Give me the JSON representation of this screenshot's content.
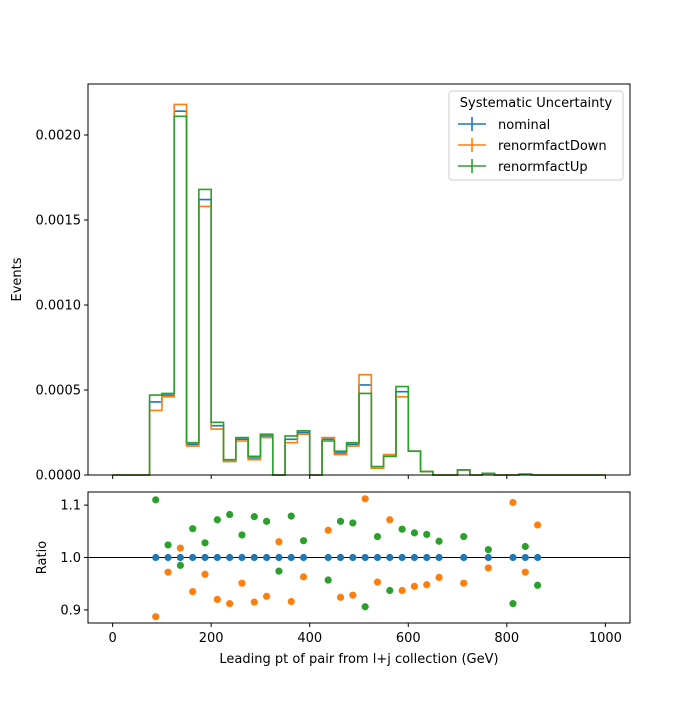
{
  "chart_data": [
    {
      "type": "line",
      "drawstyle": "steps",
      "ylabel": "Events",
      "xlim": [
        -50,
        1050
      ],
      "ylim": [
        0,
        0.0023
      ],
      "y_ticks": [
        "0.0000",
        "0.0005",
        "0.0010",
        "0.0015",
        "0.0020"
      ],
      "x_ticks": [
        0,
        200,
        400,
        600,
        800,
        1000
      ],
      "bin_edges": [
        0,
        25,
        50,
        75,
        100,
        125,
        150,
        175,
        200,
        225,
        250,
        275,
        300,
        325,
        350,
        375,
        400,
        425,
        450,
        475,
        500,
        525,
        550,
        575,
        600,
        625,
        650,
        675,
        700,
        725,
        750,
        775,
        800,
        825,
        850,
        875,
        900,
        925,
        950,
        975,
        1000
      ],
      "legend": {
        "title": "Systematic Uncertainty",
        "location": "top-right"
      },
      "series": [
        {
          "name": "nominal",
          "color": "#1f77b4",
          "values": [
            0,
            0,
            0,
            0.00043,
            0.00047,
            0.00214,
            0.00018,
            0.00162,
            0.00029,
            8e-05,
            0.00021,
            0.0001,
            0.00023,
            0,
            0.00021,
            0.00025,
            0,
            0.00021,
            0.00013,
            0.00018,
            0.00053,
            4e-05,
            0.00011,
            0.00049,
            0.00014,
            2e-05,
            0,
            0,
            3e-05,
            0,
            1e-05,
            0,
            0,
            5e-06,
            0,
            0,
            0,
            0,
            0,
            0
          ]
        },
        {
          "name": "renormfactDown",
          "color": "#ff7f0e",
          "values": [
            0,
            0,
            0,
            0.00038,
            0.00046,
            0.00218,
            0.00017,
            0.00158,
            0.00027,
            8e-05,
            0.0002,
            9e-05,
            0.00022,
            0,
            0.00019,
            0.00024,
            0,
            0.00022,
            0.00012,
            0.00017,
            0.00059,
            4e-05,
            0.00012,
            0.00046,
            0.00014,
            2e-05,
            0,
            0,
            3e-05,
            0,
            1e-05,
            0,
            0,
            5e-06,
            0,
            0,
            0,
            0,
            0,
            0
          ]
        },
        {
          "name": "renormfactUp",
          "color": "#2ca02c",
          "values": [
            0,
            0,
            0,
            0.00047,
            0.00048,
            0.00211,
            0.00019,
            0.00168,
            0.00031,
            9e-05,
            0.00022,
            0.00011,
            0.00024,
            0,
            0.00023,
            0.00026,
            0,
            0.0002,
            0.00014,
            0.00019,
            0.00048,
            5e-05,
            0.00011,
            0.00052,
            0.00014,
            2e-05,
            0,
            0,
            3e-05,
            0,
            1e-05,
            0,
            0,
            5e-06,
            0,
            0,
            0,
            0,
            0,
            0
          ]
        }
      ]
    },
    {
      "type": "scatter",
      "xlabel": "Leading pt of pair from l+j collection (GeV)",
      "ylabel": "Ratio",
      "xlim": [
        -50,
        1050
      ],
      "ylim": [
        0.875,
        1.125
      ],
      "y_ticks": [
        "0.9",
        "1.0",
        "1.1"
      ],
      "x_ticks": [
        "0",
        "200",
        "400",
        "600",
        "800",
        "1000"
      ],
      "reference_line": 1.0,
      "x": [
        87.5,
        112.5,
        137.5,
        162.5,
        187.5,
        212.5,
        237.5,
        262.5,
        287.5,
        312.5,
        337.5,
        362.5,
        387.5,
        437.5,
        462.5,
        487.5,
        512.5,
        537.5,
        562.5,
        587.5,
        612.5,
        637.5,
        662.5,
        712.5,
        762.5,
        812.5,
        837.5,
        862.5
      ],
      "series": [
        {
          "name": "nominal",
          "color": "#1f77b4",
          "y": [
            1,
            1,
            1,
            1,
            1,
            1,
            1,
            1,
            1,
            1,
            1,
            1,
            1,
            1,
            1,
            1,
            1,
            1,
            1,
            1,
            1,
            1,
            1,
            1,
            1,
            1,
            1,
            1
          ]
        },
        {
          "name": "renormfactDown",
          "color": "#ff7f0e",
          "y": [
            0.887,
            0.972,
            1.018,
            0.935,
            0.968,
            0.92,
            0.912,
            0.951,
            0.915,
            0.926,
            1.03,
            0.916,
            0.963,
            1.052,
            0.924,
            0.928,
            1.112,
            0.953,
            1.072,
            0.937,
            0.945,
            0.948,
            0.962,
            0.951,
            0.98,
            1.105,
            0.972,
            1.062
          ]
        },
        {
          "name": "renormfactUp",
          "color": "#2ca02c",
          "y": [
            1.11,
            1.024,
            0.985,
            1.055,
            1.028,
            1.072,
            1.082,
            1.043,
            1.078,
            1.069,
            0.974,
            1.079,
            1.032,
            0.957,
            1.069,
            1.066,
            0.906,
            1.04,
            0.937,
            1.054,
            1.047,
            1.044,
            1.031,
            1.04,
            1.015,
            0.912,
            1.021,
            0.947
          ]
        }
      ]
    }
  ]
}
